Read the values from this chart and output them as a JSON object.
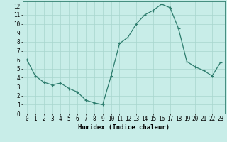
{
  "x": [
    0,
    1,
    2,
    3,
    4,
    5,
    6,
    7,
    8,
    9,
    10,
    11,
    12,
    13,
    14,
    15,
    16,
    17,
    18,
    19,
    20,
    21,
    22,
    23
  ],
  "y": [
    6.0,
    4.2,
    3.5,
    3.2,
    3.4,
    2.8,
    2.4,
    1.5,
    1.2,
    1.0,
    4.2,
    7.8,
    8.5,
    10.0,
    11.0,
    11.5,
    12.2,
    11.8,
    9.5,
    5.8,
    5.2,
    4.8,
    4.2,
    5.7
  ],
  "line_color": "#2E7D6E",
  "marker": "+",
  "marker_size": 3,
  "marker_linewidth": 0.8,
  "line_width": 0.9,
  "bg_color": "#C8EDE8",
  "grid_color": "#A8D5CE",
  "xlabel": "Humidex (Indice chaleur)",
  "xlim": [
    -0.5,
    23.5
  ],
  "ylim": [
    0,
    12.5
  ],
  "yticks": [
    0,
    1,
    2,
    3,
    4,
    5,
    6,
    7,
    8,
    9,
    10,
    11,
    12
  ],
  "xticks": [
    0,
    1,
    2,
    3,
    4,
    5,
    6,
    7,
    8,
    9,
    10,
    11,
    12,
    13,
    14,
    15,
    16,
    17,
    18,
    19,
    20,
    21,
    22,
    23
  ],
  "axis_fontsize": 6.5,
  "tick_fontsize": 5.5,
  "xlabel_fontsize": 6.5
}
